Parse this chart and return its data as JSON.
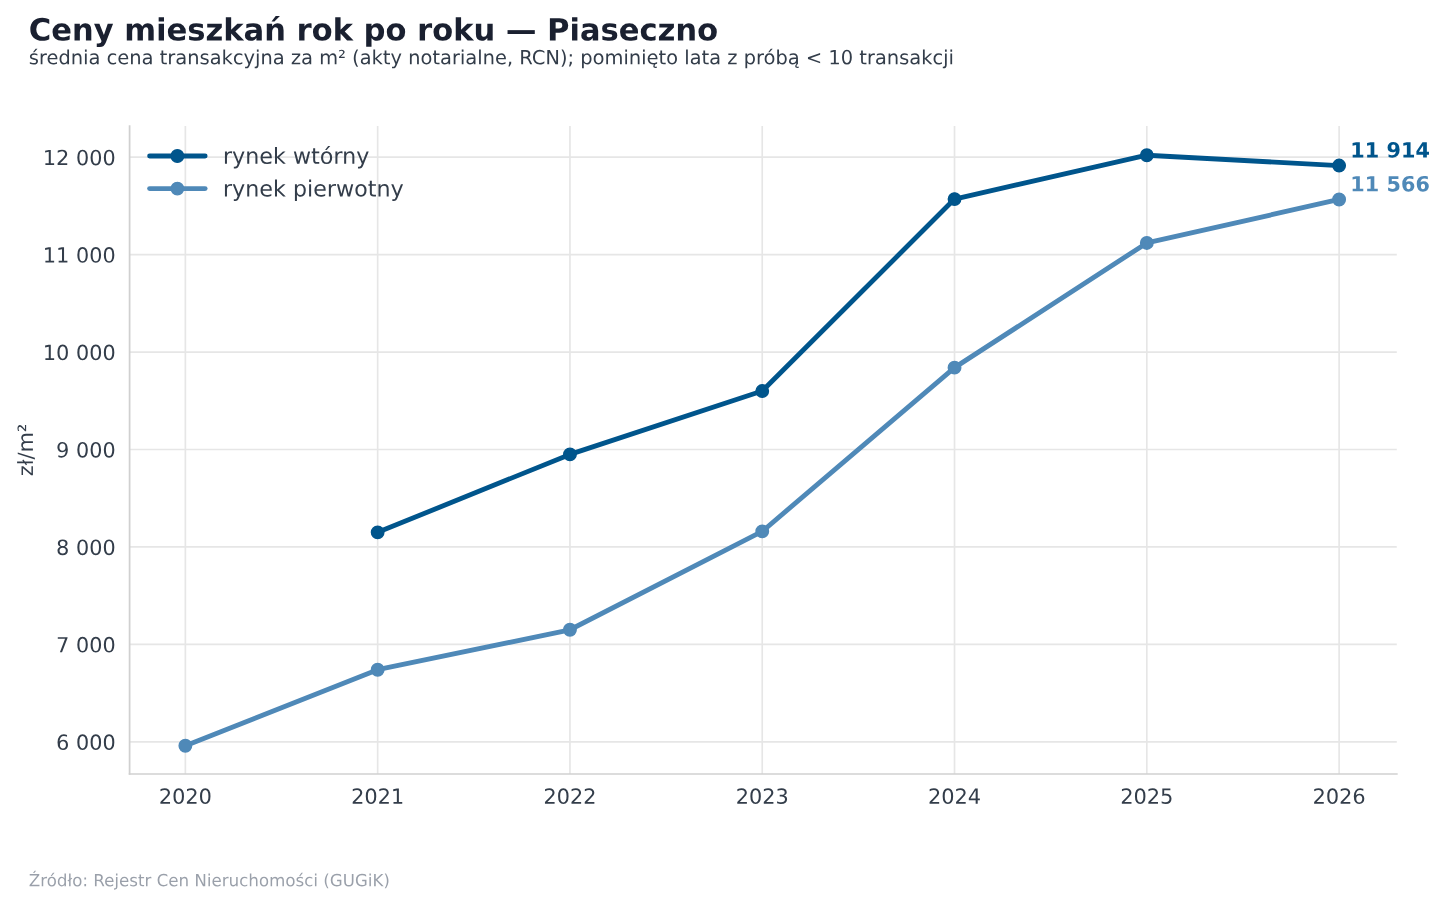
{
  "chart_data": {
    "type": "line",
    "title": "Ceny mieszkań rok po roku — Piaseczno",
    "subtitle": "średnia cena transakcyjna za m² (akty notarialne, RCN); pominięto lata z próbą < 10 transakcji",
    "ylabel": "zł/m²",
    "x": [
      2020,
      2021,
      2022,
      2023,
      2024,
      2025,
      2026
    ],
    "series": [
      {
        "name": "rynek wtórny",
        "color": "#00558c",
        "values": [
          null,
          8150,
          8950,
          9600,
          11570,
          12020,
          11914
        ],
        "value_labels": [
          null,
          null,
          null,
          null,
          null,
          null,
          "11 914"
        ]
      },
      {
        "name": "rynek pierwotny",
        "color": "#4f89b8",
        "values": [
          5960,
          6740,
          7150,
          8160,
          9840,
          11120,
          11566
        ],
        "value_labels": [
          null,
          null,
          null,
          null,
          null,
          null,
          "11 566"
        ]
      }
    ],
    "xlim": [
      2019.71,
      2026.3
    ],
    "xticks": [
      2020,
      2021,
      2022,
      2023,
      2024,
      2025,
      2026
    ],
    "ylim": [
      5670,
      12320
    ],
    "yticks": [
      {
        "value": 6000,
        "label": "6 000"
      },
      {
        "value": 7000,
        "label": "7 000"
      },
      {
        "value": 8000,
        "label": "8 000"
      },
      {
        "value": 9000,
        "label": "9 000"
      },
      {
        "value": 10000,
        "label": "10 000"
      },
      {
        "value": 11000,
        "label": "11 000"
      },
      {
        "value": 12000,
        "label": "12 000"
      }
    ],
    "grid": true,
    "legend": "top left",
    "marker": "circle",
    "line_style": "solid",
    "annotations": [
      "Źródło: Rejestr Cen Nieruchomości (GUGiK)"
    ]
  }
}
